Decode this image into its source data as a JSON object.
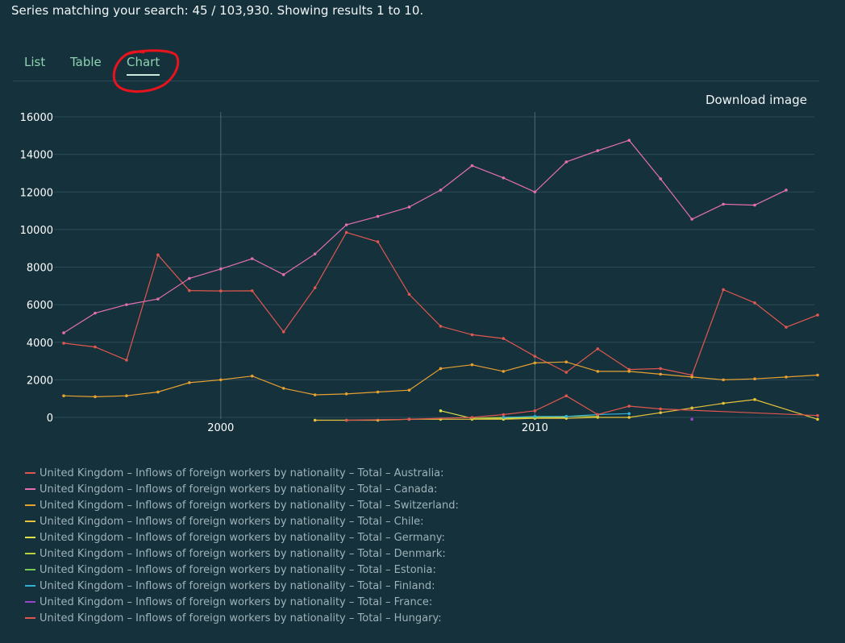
{
  "summary": "Series matching your search: 45 / 103,930. Showing results 1 to 10.",
  "tabs": [
    {
      "label": "List",
      "active": false
    },
    {
      "label": "Table",
      "active": false
    },
    {
      "label": "Chart",
      "active": true
    }
  ],
  "download_label": "Download image",
  "chart_data": {
    "type": "line",
    "title": "",
    "xlabel": "",
    "ylabel": "",
    "xlim": [
      1995,
      2019
    ],
    "ylim": [
      0,
      16000
    ],
    "yticks": [
      0,
      2000,
      4000,
      6000,
      8000,
      10000,
      12000,
      14000,
      16000
    ],
    "xticks": [
      2000,
      2010
    ],
    "grid": true,
    "legend_position": "bottom",
    "series": [
      {
        "name": "United Kingdom – Inflows of foreign workers by nationality – Total – Australia:",
        "color": "#e0574f",
        "points": [
          [
            1995,
            3950
          ],
          [
            1996,
            3750
          ],
          [
            1997,
            3050
          ],
          [
            1998,
            8650
          ],
          [
            1999,
            6750
          ],
          [
            2000,
            6730
          ],
          [
            2001,
            6740
          ],
          [
            2002,
            4550
          ],
          [
            2003,
            6900
          ],
          [
            2004,
            9850
          ],
          [
            2005,
            9350
          ],
          [
            2006,
            6550
          ],
          [
            2007,
            4850
          ],
          [
            2008,
            4400
          ],
          [
            2009,
            4200
          ],
          [
            2010,
            3250
          ],
          [
            2011,
            2400
          ],
          [
            2012,
            3650
          ],
          [
            2013,
            2550
          ],
          [
            2014,
            2600
          ],
          [
            2015,
            2250
          ],
          [
            2016,
            6800
          ],
          [
            2017,
            6100
          ],
          [
            2018,
            4800
          ],
          [
            2019,
            5450
          ]
        ]
      },
      {
        "name": "United Kingdom – Inflows of foreign workers by nationality – Total – Canada:",
        "color": "#e46fb0",
        "points": [
          [
            1995,
            4500
          ],
          [
            1996,
            5550
          ],
          [
            1997,
            6000
          ],
          [
            1998,
            6300
          ],
          [
            1999,
            7400
          ],
          [
            2000,
            7900
          ],
          [
            2001,
            8450
          ],
          [
            2002,
            7600
          ],
          [
            2003,
            8700
          ],
          [
            2004,
            10250
          ],
          [
            2005,
            10700
          ],
          [
            2006,
            11200
          ],
          [
            2007,
            12100
          ],
          [
            2008,
            13400
          ],
          [
            2009,
            12750
          ],
          [
            2010,
            12000
          ],
          [
            2011,
            13600
          ],
          [
            2012,
            14200
          ],
          [
            2013,
            14750
          ],
          [
            2014,
            12700
          ],
          [
            2015,
            10550
          ],
          [
            2016,
            11350
          ],
          [
            2017,
            11300
          ],
          [
            2018,
            12100
          ]
        ]
      },
      {
        "name": "United Kingdom – Inflows of foreign workers by nationality – Total – Switzerland:",
        "color": "#e8a030",
        "points": [
          [
            1995,
            1150
          ],
          [
            1996,
            1100
          ],
          [
            1997,
            1150
          ],
          [
            1998,
            1350
          ],
          [
            1999,
            1850
          ],
          [
            2000,
            2000
          ],
          [
            2001,
            2200
          ],
          [
            2002,
            1550
          ],
          [
            2003,
            1200
          ],
          [
            2004,
            1250
          ],
          [
            2005,
            1350
          ],
          [
            2006,
            1450
          ],
          [
            2007,
            2600
          ],
          [
            2008,
            2800
          ],
          [
            2009,
            2450
          ],
          [
            2010,
            2900
          ],
          [
            2011,
            2950
          ],
          [
            2012,
            2450
          ],
          [
            2013,
            2450
          ],
          [
            2014,
            2300
          ],
          [
            2015,
            2150
          ],
          [
            2016,
            2000
          ],
          [
            2017,
            2050
          ],
          [
            2018,
            2150
          ],
          [
            2019,
            2250
          ]
        ]
      },
      {
        "name": "United Kingdom – Inflows of foreign workers by nationality – Total – Chile:",
        "color": "#e7c23a",
        "points": [
          [
            2003,
            -150
          ],
          [
            2004,
            -150
          ],
          [
            2005,
            -150
          ],
          [
            2006,
            -100
          ],
          [
            2007,
            -100
          ],
          [
            2008,
            -100
          ],
          [
            2009,
            -100
          ],
          [
            2010,
            -50
          ],
          [
            2011,
            -50
          ],
          [
            2012,
            0
          ],
          [
            2013,
            0
          ],
          [
            2014,
            250
          ],
          [
            2015,
            500
          ],
          [
            2016,
            750
          ],
          [
            2017,
            950
          ],
          [
            2019,
            -100
          ]
        ]
      },
      {
        "name": "United Kingdom – Inflows of foreign workers by nationality – Total – Germany:",
        "color": "#dfe04a",
        "points": [
          [
            2007,
            350
          ],
          [
            2008,
            -50
          ],
          [
            2009,
            -50
          ],
          [
            2010,
            0
          ],
          [
            2011,
            0
          ]
        ]
      },
      {
        "name": "United Kingdom – Inflows of foreign workers by nationality – Total – Denmark:",
        "color": "#b9d23c",
        "points": [
          [
            2008,
            -50
          ],
          [
            2009,
            0
          ],
          [
            2010,
            0
          ],
          [
            2011,
            50
          ],
          [
            2012,
            50
          ]
        ]
      },
      {
        "name": "United Kingdom – Inflows of foreign workers by nationality – Total – Estonia:",
        "color": "#78c85a",
        "points": []
      },
      {
        "name": "United Kingdom – Inflows of foreign workers by nationality – Total – Finland:",
        "color": "#2fb2d6",
        "points": [
          [
            2009,
            0
          ],
          [
            2010,
            50
          ],
          [
            2011,
            50
          ],
          [
            2012,
            150
          ],
          [
            2013,
            200
          ]
        ]
      },
      {
        "name": "United Kingdom – Inflows of foreign workers by nationality – Total – France:",
        "color": "#9b45c9",
        "points": [
          [
            2015,
            -100
          ]
        ]
      },
      {
        "name": "United Kingdom – Inflows of foreign workers by nationality – Total – Hungary:",
        "color": "#e0574f",
        "points": [
          [
            2004,
            -150
          ],
          [
            2006,
            -100
          ],
          [
            2008,
            0
          ],
          [
            2009,
            150
          ],
          [
            2010,
            350
          ],
          [
            2011,
            1150
          ],
          [
            2012,
            150
          ],
          [
            2013,
            600
          ],
          [
            2014,
            450
          ],
          [
            2019,
            100
          ]
        ]
      }
    ]
  }
}
